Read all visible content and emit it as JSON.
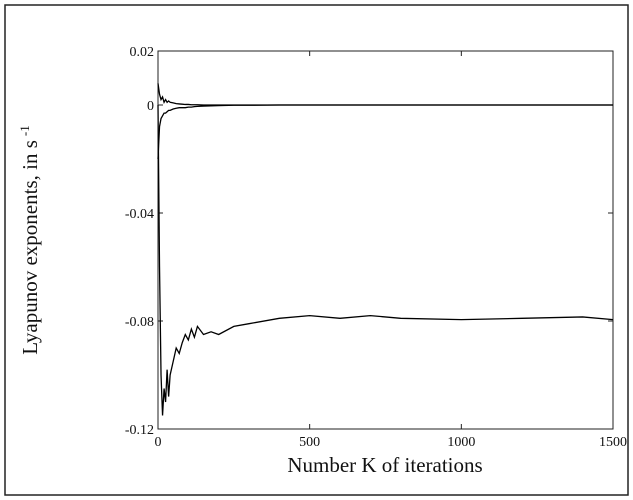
{
  "chart_data": {
    "type": "line",
    "xlabel": "Number K of iterations",
    "ylabel": "Lyapunov exponents, in s",
    "ylabel_sup": "-1",
    "x": [
      0,
      5,
      10,
      15,
      20,
      25,
      30,
      35,
      40,
      50,
      60,
      70,
      80,
      90,
      100,
      110,
      120,
      130,
      150,
      175,
      200,
      250,
      300,
      400,
      500,
      600,
      700,
      800,
      1000,
      1200,
      1400,
      1500
    ],
    "series": [
      {
        "color": "#000000",
        "values": [
          0.008,
          0.004,
          0.002,
          0.003,
          0.001,
          0.002,
          0.001,
          0.0015,
          0.001,
          0.0008,
          0.0005,
          0.0004,
          0.0003,
          0.0002,
          0.0002,
          0.0001,
          0.0001,
          0.0001,
          0,
          0,
          0,
          0,
          0,
          0,
          0,
          0,
          0,
          0,
          0,
          0,
          0,
          0
        ]
      },
      {
        "color": "#000000",
        "values": [
          -0.02,
          -0.008,
          -0.005,
          -0.004,
          -0.003,
          -0.003,
          -0.0025,
          -0.002,
          -0.002,
          -0.0015,
          -0.0012,
          -0.001,
          -0.001,
          -0.001,
          -0.0008,
          -0.0008,
          -0.0006,
          -0.0005,
          -0.0004,
          -0.0003,
          -0.0002,
          -0.0001,
          -0.0001,
          0,
          0,
          0,
          0,
          0,
          0,
          0,
          0,
          0
        ]
      },
      {
        "color": "#000000",
        "values": [
          0,
          -0.06,
          -0.1,
          -0.115,
          -0.105,
          -0.11,
          -0.098,
          -0.108,
          -0.1,
          -0.095,
          -0.09,
          -0.092,
          -0.088,
          -0.085,
          -0.087,
          -0.083,
          -0.086,
          -0.082,
          -0.085,
          -0.084,
          -0.085,
          -0.082,
          -0.081,
          -0.079,
          -0.078,
          -0.079,
          -0.078,
          -0.079,
          -0.0795,
          -0.079,
          -0.0785,
          -0.0795
        ]
      }
    ],
    "xlim": [
      0,
      1500
    ],
    "xticks": [
      0,
      500,
      1000,
      1500
    ],
    "ylim": [
      -0.12,
      0.02
    ],
    "yticks": [
      0.02,
      0,
      -0.04,
      -0.08,
      -0.12
    ]
  }
}
